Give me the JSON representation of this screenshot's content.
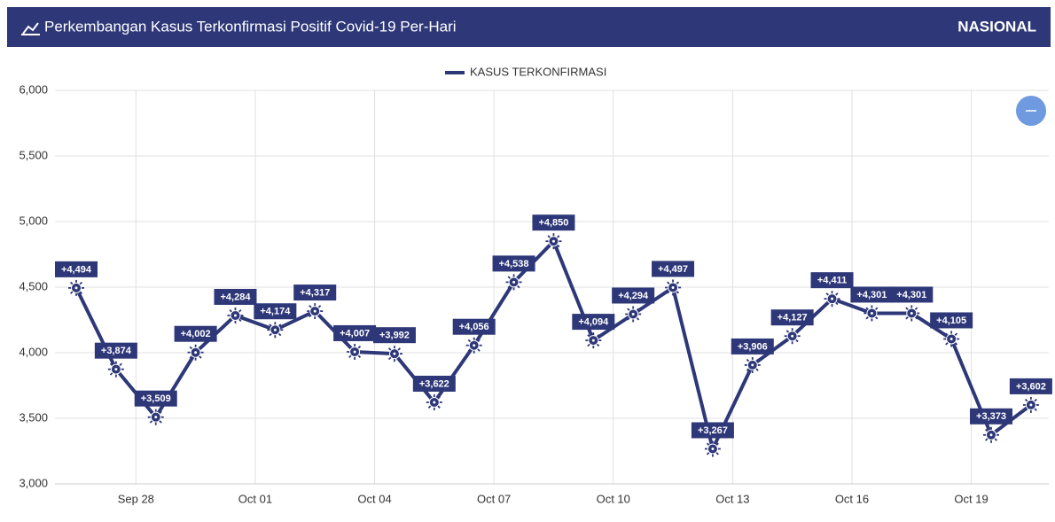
{
  "header": {
    "title": "Perkembangan Kasus Terkonfirmasi Positif Covid-19 Per-Hari",
    "scope": "NASIONAL"
  },
  "chart_data": {
    "type": "line",
    "x": [
      "Sep 26",
      "Sep 27",
      "Sep 28",
      "Sep 29",
      "Sep 30",
      "Oct 01",
      "Oct 02",
      "Oct 03",
      "Oct 04",
      "Oct 05",
      "Oct 06",
      "Oct 07",
      "Oct 08",
      "Oct 09",
      "Oct 10",
      "Oct 11",
      "Oct 12",
      "Oct 13",
      "Oct 14",
      "Oct 15",
      "Oct 16",
      "Oct 17",
      "Oct 18",
      "Oct 19",
      "Oct 20"
    ],
    "series": [
      {
        "name": "KASUS TERKONFIRMASI",
        "color": "#2e3878",
        "values": [
          4494,
          3874,
          3509,
          4002,
          4284,
          4174,
          4317,
          4007,
          3992,
          3622,
          4056,
          4538,
          4850,
          4094,
          4294,
          4497,
          3267,
          3906,
          4127,
          4411,
          4301,
          4301,
          4105,
          3373,
          3602
        ],
        "value_labels": [
          "+4,494",
          "+3,874",
          "+3,509",
          "+4,002",
          "+4,284",
          "+4,174",
          "+4,317",
          "+4,007",
          "+3,992",
          "+3,622",
          "+4,056",
          "+4,538",
          "+4,850",
          "+4,094",
          "+4,294",
          "+4,497",
          "+3,267",
          "+3,906",
          "+4,127",
          "+4,411",
          "+4,301",
          "+4,301",
          "+4,105",
          "+3,373",
          "+3,602"
        ]
      }
    ],
    "xticks": [
      "Sep 28",
      "Oct 01",
      "Oct 04",
      "Oct 07",
      "Oct 10",
      "Oct 13",
      "Oct 16",
      "Oct 19"
    ],
    "ylim": [
      3000,
      6000
    ],
    "yticks": [
      {
        "value": 3000,
        "label": "3,000"
      },
      {
        "value": 3500,
        "label": "3,500"
      },
      {
        "value": 4000,
        "label": "4,000"
      },
      {
        "value": 4500,
        "label": "4,500"
      },
      {
        "value": 5000,
        "label": "5,000"
      },
      {
        "value": 5500,
        "label": "5,500"
      },
      {
        "value": 6000,
        "label": "6,000"
      }
    ],
    "grid": true,
    "legend": "top"
  }
}
